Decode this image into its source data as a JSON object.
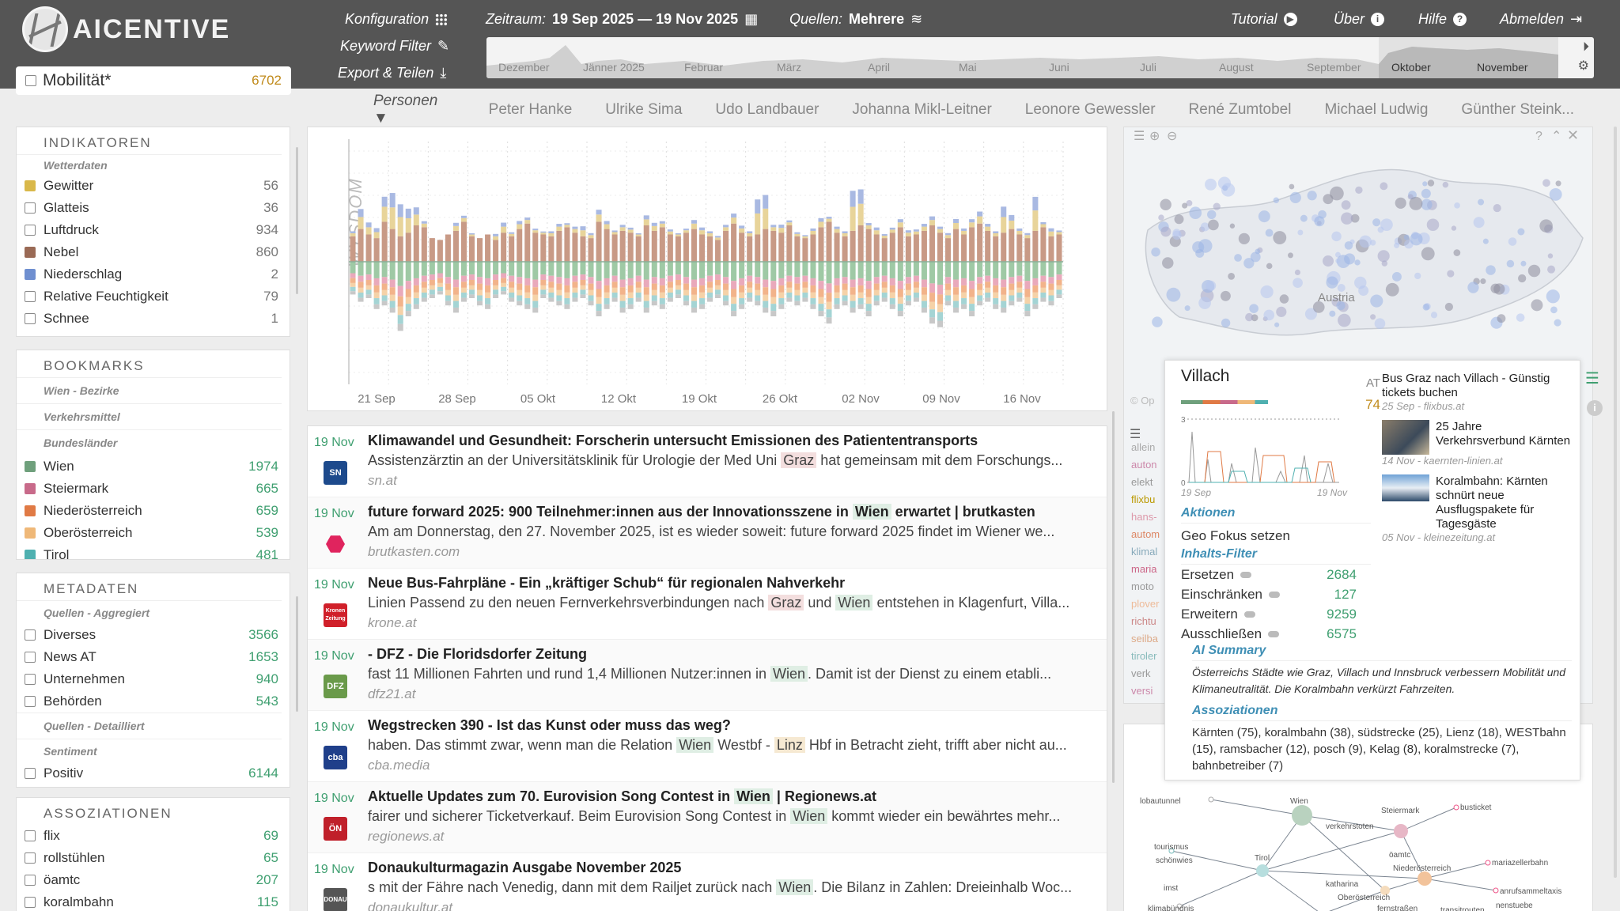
{
  "header": {
    "logo": "AICENTIVE",
    "search_label": "Mobilität*",
    "search_count": "6702",
    "menu": {
      "config": "Konfiguration",
      "keyword": "Keyword Filter",
      "export": "Export & Teilen",
      "range_label": "Zeitraum:",
      "range_value": "19 Sep 2025 — 19 Nov 2025",
      "sources_label": "Quellen:",
      "sources_value": "Mehrere",
      "tutorial": "Tutorial",
      "about": "Über",
      "help": "Hilfe",
      "logout": "Abmelden"
    },
    "timeline_months": [
      "Dezember",
      "Jänner 2025",
      "Februar",
      "März",
      "April",
      "Mai",
      "Juni",
      "Juli",
      "August",
      "September",
      "Oktober",
      "November"
    ]
  },
  "persons": {
    "dropdown": "Personen",
    "names": [
      "Peter Hanke",
      "Ulrike Sima",
      "Udo Landbauer",
      "Johanna Mikl-Leitner",
      "Leonore Gewessler",
      "René Zumtobel",
      "Michael Ludwig",
      "Günther Steink..."
    ]
  },
  "indicators": {
    "title": "INDIKATOREN",
    "sub": "Wetterdaten",
    "items": [
      {
        "label": "Gewitter",
        "value": "56",
        "color": "#d9b84a"
      },
      {
        "label": "Glatteis",
        "value": "36"
      },
      {
        "label": "Luftdruck",
        "value": "934"
      },
      {
        "label": "Nebel",
        "value": "860",
        "color": "#9a6a55"
      },
      {
        "label": "Niederschlag",
        "value": "2",
        "color": "#6f8fd0"
      },
      {
        "label": "Relative Feuchtigkeit",
        "value": "79"
      },
      {
        "label": "Schnee",
        "value": "1"
      }
    ]
  },
  "bookmarks": {
    "title": "BOOKMARKS",
    "subs": [
      "Wien - Bezirke",
      "Verkehrsmittel",
      "Bundesländer"
    ],
    "items": [
      {
        "label": "Wien",
        "value": "1974",
        "color": "#6fa07c"
      },
      {
        "label": "Steiermark",
        "value": "665",
        "color": "#c86a8a"
      },
      {
        "label": "Niederösterreich",
        "value": "659",
        "color": "#e07a45"
      },
      {
        "label": "Oberösterreich",
        "value": "539",
        "color": "#efb878"
      },
      {
        "label": "Tirol",
        "value": "481",
        "color": "#4fb0b0"
      }
    ]
  },
  "metadata": {
    "title": "METADATEN",
    "sub1": "Quellen - Aggregiert",
    "items": [
      {
        "label": "Diverses",
        "value": "3566"
      },
      {
        "label": "News AT",
        "value": "1653"
      },
      {
        "label": "Unternehmen",
        "value": "940"
      },
      {
        "label": "Behörden",
        "value": "543"
      }
    ],
    "sub2": "Quellen - Detailliert",
    "sub3": "Sentiment",
    "sentiment": {
      "label": "Positiv",
      "value": "6144"
    }
  },
  "associations": {
    "title": "ASSOZIATIONEN",
    "items": [
      {
        "label": "flix",
        "value": "69"
      },
      {
        "label": "rollstühlen",
        "value": "65"
      },
      {
        "label": "öamtc",
        "value": "207"
      },
      {
        "label": "koralmbahn",
        "value": "115"
      }
    ]
  },
  "chart_data": {
    "type": "bar",
    "ylabel": "WYSDOM",
    "x_ticks": [
      "21 Sep",
      "28 Sep",
      "05 Okt",
      "12 Okt",
      "19 Okt",
      "26 Okt",
      "02 Nov",
      "09 Nov",
      "16 Nov"
    ],
    "up": [
      14,
      18,
      15,
      13,
      22,
      18,
      14,
      16,
      20,
      19,
      13,
      12,
      15,
      17,
      22,
      14,
      13,
      15,
      12,
      16,
      14,
      18,
      21,
      16,
      15,
      14,
      17,
      19,
      16,
      14,
      13,
      22,
      18,
      15,
      17,
      16,
      14,
      20,
      17,
      19,
      15,
      14,
      16,
      18,
      15,
      14,
      12,
      17,
      21,
      16,
      14,
      15,
      18,
      17,
      16,
      20,
      14,
      13,
      15,
      19,
      22,
      16,
      14,
      17,
      20,
      18,
      15,
      13,
      16,
      19,
      14,
      15,
      17,
      20,
      16,
      13,
      18,
      15,
      19,
      21,
      17,
      14,
      16,
      18,
      15,
      13,
      17,
      19,
      14,
      15
    ],
    "up_extra": [
      5,
      20,
      12,
      10,
      25,
      36,
      32,
      24,
      18,
      6,
      0,
      0,
      0,
      8,
      6,
      3,
      0,
      0,
      6,
      10,
      4,
      8,
      6,
      4,
      3,
      5,
      7,
      4,
      6,
      10,
      5,
      12,
      8,
      4,
      6,
      5,
      3,
      10,
      8,
      6,
      5,
      3,
      4,
      9,
      7,
      5,
      4,
      6,
      10,
      7,
      5,
      35,
      34,
      6,
      8,
      5,
      4,
      3,
      6,
      9,
      5,
      6,
      5,
      40,
      36,
      6,
      7,
      4,
      5,
      8,
      6,
      5,
      7,
      9,
      6,
      5,
      10,
      6,
      8,
      12,
      7,
      5,
      26,
      14,
      6,
      5,
      34,
      5,
      8,
      4
    ],
    "down": [
      18,
      22,
      20,
      26,
      24,
      28,
      38,
      30,
      26,
      22,
      20,
      18,
      24,
      28,
      22,
      20,
      24,
      26,
      20,
      18,
      22,
      24,
      26,
      28,
      20,
      22,
      24,
      26,
      22,
      20,
      24,
      30,
      26,
      22,
      28,
      26,
      22,
      28,
      24,
      26,
      22,
      20,
      24,
      28,
      26,
      22,
      20,
      24,
      30,
      26,
      22,
      24,
      28,
      30,
      26,
      22,
      24,
      22,
      26,
      30,
      34,
      26,
      24,
      28,
      26,
      30,
      24,
      22,
      26,
      30,
      24,
      22,
      28,
      34,
      36,
      24,
      28,
      26,
      30,
      24,
      22,
      26,
      28,
      24,
      22,
      30,
      26,
      22,
      24,
      20
    ]
  },
  "map": {
    "country": "Austria",
    "copyright": "© Op"
  },
  "popup": {
    "city": "Villach",
    "at": "AT",
    "at_value": "74",
    "date_from": "19 Sep",
    "date_to": "19 Nov",
    "y_top": "3",
    "y_zero": "0",
    "actions_h": "Aktionen",
    "action": "Geo Fokus setzen",
    "filter_h": "Inhalts-Filter",
    "filters": [
      {
        "label": "Ersetzen",
        "value": "2684"
      },
      {
        "label": "Einschränken",
        "value": "127"
      },
      {
        "label": "Erweitern",
        "value": "9259"
      },
      {
        "label": "Ausschließen",
        "value": "6575"
      }
    ],
    "summary_h": "AI Summary",
    "summary": "Österreichs Städte wie Graz, Villach und Innsbruck verbessern Mobilität und Klimaneutralität. Die Koralmbahn verkürzt Fahrzeiten.",
    "assoc_h": "Assoziationen",
    "assoc": "Kärnten (75), koralmbahn (38), südstrecke (25), Lienz (18), WESTbahn (15), ramsbacher (12), posch (9), Kelag (8), koralmstrecke (7), bahnbetreiber (7)",
    "articles": [
      {
        "title": "Bus Graz nach Villach - Günstig tickets buchen",
        "meta": "25 Sep - flixbus.at"
      },
      {
        "title": "25 Jahre Verkehrsverbund Kärnten",
        "meta": "14 Nov - kaernten-linien.at"
      },
      {
        "title": "Koralmbahn: Kärnten schnürt neue Ausflugspakete für Tagesgäste",
        "meta": "05 Nov - kleinezeitung.at"
      }
    ]
  },
  "tags": [
    "allein",
    "auton",
    "elekt",
    "flixbu",
    "hans-",
    "autom",
    "klimal",
    "maria",
    "moto",
    "plover",
    "richtu",
    "seilba",
    "tiroler",
    "verk",
    "versi"
  ],
  "network": [
    "lobautunnel",
    "Wien",
    "Steiermark",
    "busticket",
    "verkehrstoten",
    "tourismus",
    "schönwies",
    "öamtc",
    "mariazellerbahn",
    "Tirol",
    "Niederösterreich",
    "imst",
    "katharina",
    "anrufsammeltaxis",
    "Oberösterreich",
    "klimabündnis",
    "fernstraßen",
    "transitrouten",
    "nenstuebe"
  ],
  "news": [
    {
      "date": "19 Nov",
      "logo": "SN",
      "logo_bg": "#1d4a8c",
      "title": "Klimawandel und Gesundheit: Forscherin untersucht Emissionen des Patiententransports",
      "text": "Assistenzärztin an der Universitätsklinik für Urologie der Med Uni Graz hat gemeinsam mit dem Forschungs...",
      "source": "sn.at"
    },
    {
      "date": "19 Nov",
      "logo": "",
      "logo_bg": "#e0245e",
      "title": "future forward 2025: 900 Teilnehmer:innen aus der Innovationsszene in Wien erwartet | brutkasten",
      "text": "Am am Donnerstag, den 27. November 2025, ist es wieder soweit: future forward 2025 findet im Wiener we...",
      "source": "brutkasten.com"
    },
    {
      "date": "19 Nov",
      "logo": "Kronen Zeitung",
      "logo_bg": "#d0202a",
      "title": "Neue Bus-Fahrpläne - Ein „kräftiger Schub“ für regionalen Nahverkehr",
      "text": "Linien Passend zu den neuen Fernverkehrsverbindungen nach Graz und Wien entstehen in Klagenfurt, Villa...",
      "source": "krone.at"
    },
    {
      "date": "19 Nov",
      "logo": "DFZ",
      "logo_bg": "#6a9a4a",
      "title": "- DFZ - Die Floridsdorfer Zeitung",
      "text": "fast 11 Millionen Fahrten und rund 1,4 Millionen Nutzer:innen in Wien. Damit ist der Dienst zu einem etabli...",
      "source": "dfz21.at"
    },
    {
      "date": "19 Nov",
      "logo": "cba",
      "logo_bg": "#1f3f8a",
      "title": "Wegstrecken 390 - Ist das Kunst oder muss das weg?",
      "text": "haben. Das stimmt zwar, wenn man die Relation Wien Westbf - Linz Hbf in Betracht zieht, trifft aber nicht au...",
      "source": "cba.media"
    },
    {
      "date": "19 Nov",
      "logo": "ÖN",
      "logo_bg": "#c0202a",
      "title": "Aktuelle Updates zum 70. Eurovision Song Contest in Wien | Regionews.at",
      "text": "fairer und sicherer Ticketverkauf. Beim Eurovision Song Contest in Wien kommt wieder ein bewährtes mehr...",
      "source": "regionews.at"
    },
    {
      "date": "19 Nov",
      "logo": "DONAU",
      "logo_bg": "#555",
      "title": "Donaukulturmagazin Ausgabe November 2025",
      "text": "s mit der Fähre nach Venedig, dann mit dem Railjet zurück nach Wien. Die Bilanz in Zahlen: Dreieinhalb Woc...",
      "source": "donaukultur.at"
    }
  ]
}
